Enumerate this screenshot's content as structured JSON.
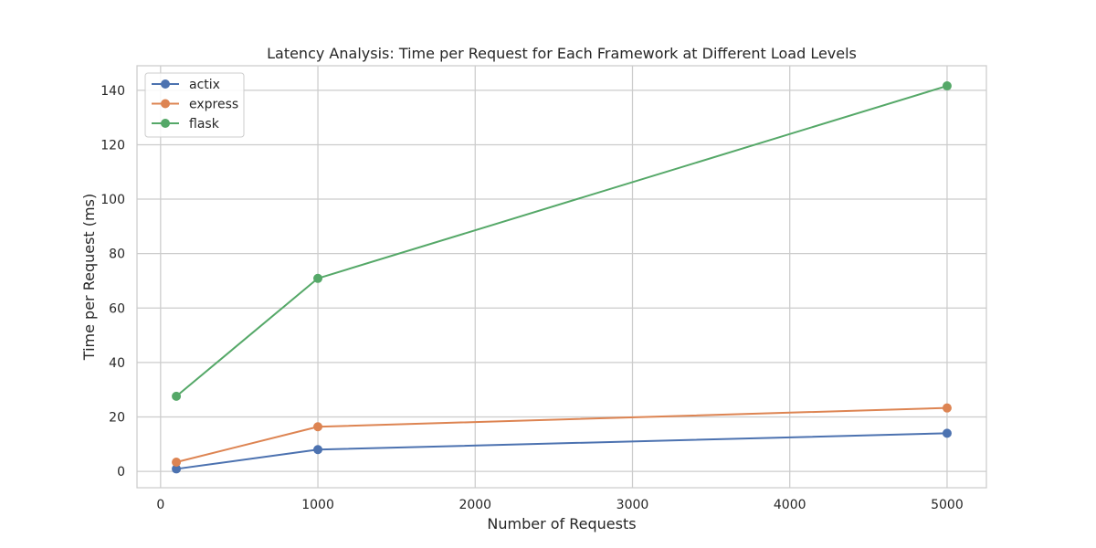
{
  "chart_data": {
    "type": "line",
    "title": "Latency Analysis: Time per Request for Each Framework at Different Load Levels",
    "xlabel": "Number of Requests",
    "ylabel": "Time per Request (ms)",
    "x": [
      100,
      1000,
      5000
    ],
    "xlim": [
      -150,
      5250
    ],
    "ylim": [
      -6,
      149
    ],
    "xticks": [
      0,
      1000,
      2000,
      3000,
      4000,
      5000
    ],
    "yticks": [
      0,
      20,
      40,
      60,
      80,
      100,
      120,
      140
    ],
    "grid": true,
    "legend_position": "top-left",
    "series": [
      {
        "name": "actix",
        "color": "#4c72b0",
        "values": [
          0.9,
          8.0,
          14.0
        ]
      },
      {
        "name": "express",
        "color": "#dd8452",
        "values": [
          3.4,
          16.4,
          23.3
        ]
      },
      {
        "name": "flask",
        "color": "#55a868",
        "values": [
          27.6,
          70.9,
          141.6
        ]
      }
    ]
  }
}
